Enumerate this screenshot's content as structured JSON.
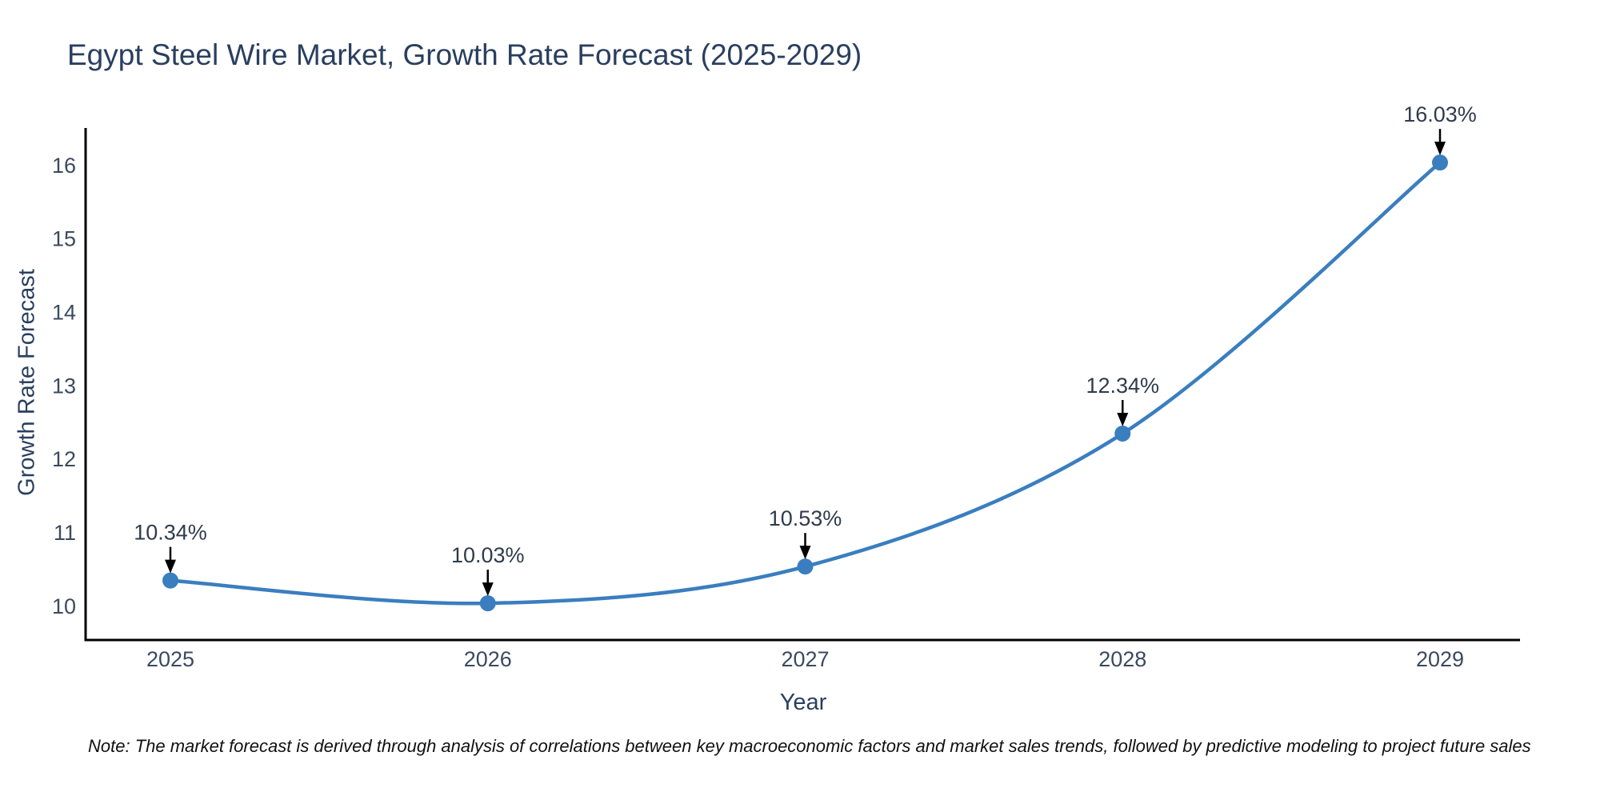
{
  "note": "Note: The market forecast is derived through analysis of correlations between key macroeconomic factors and market sales trends, followed by predictive modeling to project future sales",
  "chart_data": {
    "type": "line",
    "title": "Egypt Steel Wire Market, Growth Rate Forecast (2025-2029)",
    "xlabel": "Year",
    "ylabel": "Growth Rate Forecast",
    "x": [
      "2025",
      "2026",
      "2027",
      "2028",
      "2029"
    ],
    "y": [
      10.34,
      10.03,
      10.53,
      12.34,
      16.03
    ],
    "point_labels": [
      "10.34%",
      "10.03%",
      "10.53%",
      "12.34%",
      "16.03%"
    ],
    "yticks": [
      10,
      11,
      12,
      13,
      14,
      15,
      16
    ],
    "ylim": [
      9.53,
      16.5
    ],
    "grid": false,
    "legend": "none",
    "smooth": true,
    "line_color": "#3a7ebf",
    "marker_color": "#3a7ebf",
    "axis_color": "#000000",
    "annotation_arrow_color": "#000000",
    "title_color": "#2a3f5f",
    "tick_color": "#3b4a5f"
  }
}
